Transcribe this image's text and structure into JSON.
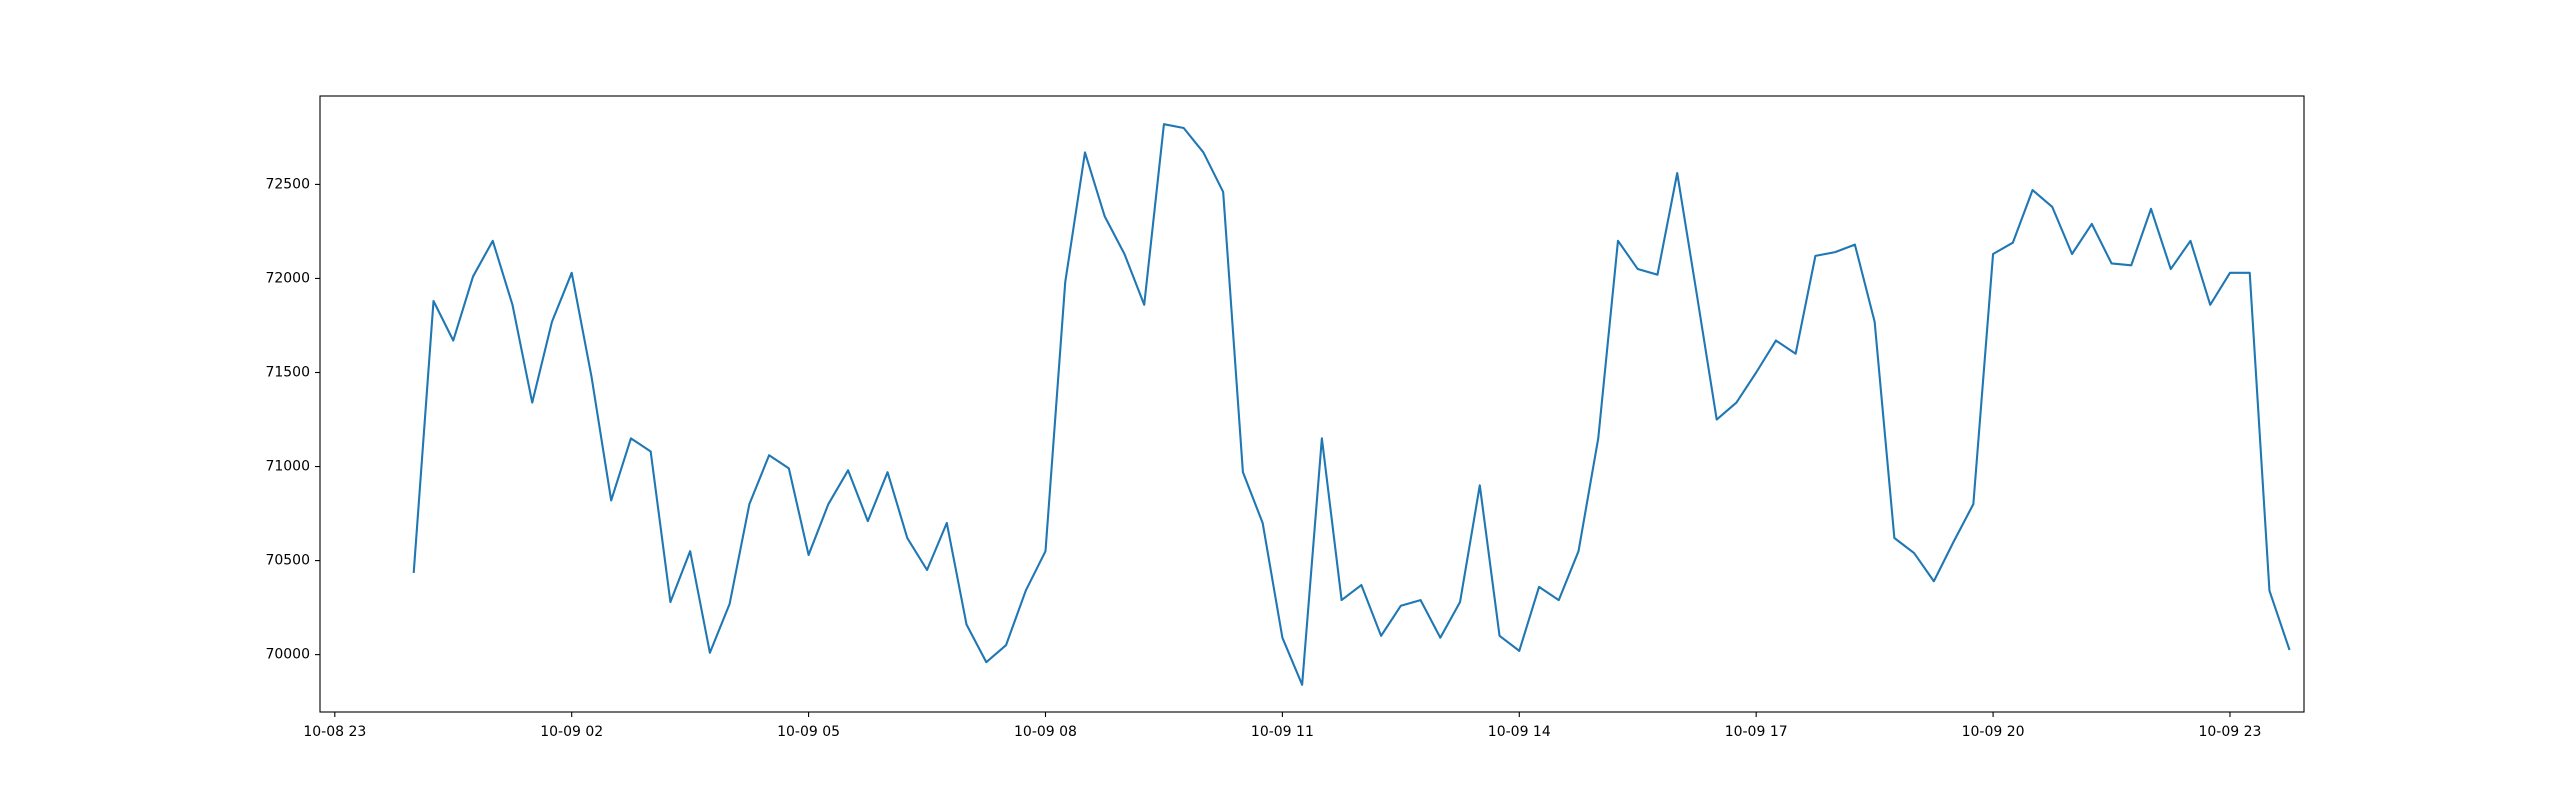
{
  "chart_data": {
    "type": "line",
    "x": [
      "10-09 00:00",
      "10-09 00:15",
      "10-09 00:30",
      "10-09 00:45",
      "10-09 01:00",
      "10-09 01:15",
      "10-09 01:30",
      "10-09 01:45",
      "10-09 02:00",
      "10-09 02:15",
      "10-09 02:30",
      "10-09 02:45",
      "10-09 03:00",
      "10-09 03:15",
      "10-09 03:30",
      "10-09 03:45",
      "10-09 04:00",
      "10-09 04:15",
      "10-09 04:30",
      "10-09 04:45",
      "10-09 05:00",
      "10-09 05:15",
      "10-09 05:30",
      "10-09 05:45",
      "10-09 06:00",
      "10-09 06:15",
      "10-09 06:30",
      "10-09 06:45",
      "10-09 07:00",
      "10-09 07:15",
      "10-09 07:30",
      "10-09 07:45",
      "10-09 08:00",
      "10-09 08:15",
      "10-09 08:30",
      "10-09 08:45",
      "10-09 09:00",
      "10-09 09:15",
      "10-09 09:30",
      "10-09 09:45",
      "10-09 10:00",
      "10-09 10:15",
      "10-09 10:30",
      "10-09 10:45",
      "10-09 11:00",
      "10-09 11:15",
      "10-09 11:30",
      "10-09 11:45",
      "10-09 12:00",
      "10-09 12:15",
      "10-09 12:30",
      "10-09 12:45",
      "10-09 13:00",
      "10-09 13:15",
      "10-09 13:30",
      "10-09 13:45",
      "10-09 14:00",
      "10-09 14:15",
      "10-09 14:30",
      "10-09 14:45",
      "10-09 15:00",
      "10-09 15:15",
      "10-09 15:30",
      "10-09 15:45",
      "10-09 16:00",
      "10-09 16:15",
      "10-09 16:30",
      "10-09 16:45",
      "10-09 17:00",
      "10-09 17:15",
      "10-09 17:30",
      "10-09 17:45",
      "10-09 18:00",
      "10-09 18:15",
      "10-09 18:30",
      "10-09 18:45",
      "10-09 19:00",
      "10-09 19:15",
      "10-09 19:30",
      "10-09 19:45",
      "10-09 20:00",
      "10-09 20:15",
      "10-09 20:30",
      "10-09 20:45",
      "10-09 21:00",
      "10-09 21:15",
      "10-09 21:30",
      "10-09 21:45",
      "10-09 22:00",
      "10-09 22:15",
      "10-09 22:30",
      "10-09 22:45",
      "10-09 23:00",
      "10-09 23:15",
      "10-09 23:30",
      "10-09 23:45"
    ],
    "values": [
      70440,
      71880,
      71670,
      72010,
      72200,
      71860,
      71340,
      71770,
      72030,
      71480,
      70820,
      71150,
      71080,
      70280,
      70550,
      70010,
      70270,
      70800,
      71060,
      70990,
      70530,
      70800,
      70980,
      70710,
      70970,
      70620,
      70450,
      70700,
      70160,
      69960,
      70050,
      70340,
      70550,
      71980,
      72670,
      72330,
      72130,
      71860,
      72820,
      72800,
      72670,
      72460,
      70970,
      70700,
      70090,
      69840,
      71150,
      70290,
      70370,
      70100,
      70260,
      70290,
      70090,
      70280,
      70900,
      70100,
      70020,
      70360,
      70290,
      70550,
      71150,
      72200,
      72050,
      72020,
      72560,
      71910,
      71250,
      71340,
      71500,
      71670,
      71600,
      72120,
      72140,
      72180,
      71770,
      70620,
      70540,
      70390,
      70600,
      70800,
      72130,
      72190,
      72470,
      72380,
      72130,
      72290,
      72080,
      72070,
      72370,
      72050,
      72200,
      71860,
      72030,
      72030,
      70340,
      70030
    ],
    "color": "#1f77b4",
    "xlim": [
      "10-08 22:48:45",
      "10-09 23:56:15"
    ],
    "xticks": [
      "10-08 23",
      "10-09 02",
      "10-09 05",
      "10-09 08",
      "10-09 11",
      "10-09 14",
      "10-09 17",
      "10-09 20",
      "10-09 23"
    ],
    "ylim": [
      69695,
      72970
    ],
    "yticks": [
      70000,
      70500,
      71000,
      71500,
      72000,
      72500
    ],
    "grid": false
  }
}
